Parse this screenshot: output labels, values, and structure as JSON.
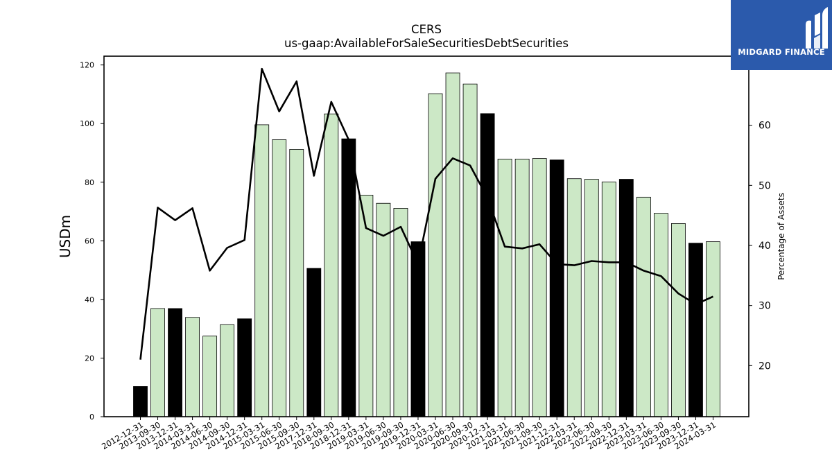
{
  "logo": {
    "text": "MIDGARD FINANCE",
    "icon": "midgard-logo-icon",
    "color": "#2b5aac"
  },
  "chart_data": {
    "type": "bar",
    "title": "CERS",
    "subtitle": "us-gaap:AvailableForSaleSecuritiesDebtSecurities",
    "ylabel": "USDm",
    "y2label": "Percentage of Assets",
    "ylim": [
      0,
      123
    ],
    "y2lim": [
      11.5,
      71.5
    ],
    "yticks": [
      0,
      20,
      40,
      60,
      80,
      100,
      120
    ],
    "y2ticks": [
      20,
      30,
      40,
      50,
      60,
      70
    ],
    "grid": false,
    "categories": [
      "2012-12-31",
      "2013-09-30",
      "2013-12-31",
      "2014-03-31",
      "2014-06-30",
      "2014-09-30",
      "2014-12-31",
      "2015-03-31",
      "2015-06-30",
      "2015-09-30",
      "2017-12-31",
      "2018-09-30",
      "2018-12-31",
      "2019-03-31",
      "2019-06-30",
      "2019-09-30",
      "2019-12-31",
      "2020-03-31",
      "2020-06-30",
      "2020-09-30",
      "2020-12-31",
      "2021-03-31",
      "2021-06-30",
      "2021-09-30",
      "2021-12-31",
      "2022-03-31",
      "2022-06-30",
      "2022-09-30",
      "2022-12-31",
      "2023-03-31",
      "2023-06-30",
      "2023-09-30",
      "2023-12-31",
      "2024-03-31"
    ],
    "series": [
      {
        "kind": "bar",
        "values": [
          10.3,
          36.9,
          36.9,
          33.9,
          27.5,
          31.4,
          33.4,
          99.6,
          94.5,
          91.2,
          50.6,
          103.3,
          94.8,
          75.6,
          72.8,
          71.1,
          59.7,
          110.2,
          117.3,
          113.5,
          103.4,
          87.9,
          87.9,
          88.1,
          87.6,
          81.2,
          81.0,
          80.1,
          81.0,
          74.9,
          69.4,
          65.9,
          59.2,
          59.7
        ],
        "highlight": [
          true,
          false,
          true,
          false,
          false,
          false,
          true,
          false,
          false,
          false,
          true,
          false,
          true,
          false,
          false,
          false,
          true,
          false,
          false,
          false,
          true,
          false,
          false,
          false,
          true,
          false,
          false,
          false,
          true,
          false,
          false,
          false,
          true,
          false
        ]
      },
      {
        "kind": "line",
        "axis": "right",
        "values": [
          21.0,
          46.3,
          44.2,
          46.2,
          35.8,
          39.6,
          40.9,
          69.4,
          62.3,
          67.3,
          51.6,
          63.9,
          57.6,
          42.9,
          41.6,
          43.1,
          36.9,
          51.1,
          54.5,
          53.3,
          47.9,
          39.8,
          39.5,
          40.2,
          36.9,
          36.7,
          37.4,
          37.2,
          37.2,
          35.8,
          34.9,
          32.0,
          30.2,
          31.5
        ]
      }
    ],
    "colors": {
      "bar": "#cce8c6",
      "bar_highlight": "#000000",
      "line": "#000000",
      "edge": "#000000"
    }
  }
}
